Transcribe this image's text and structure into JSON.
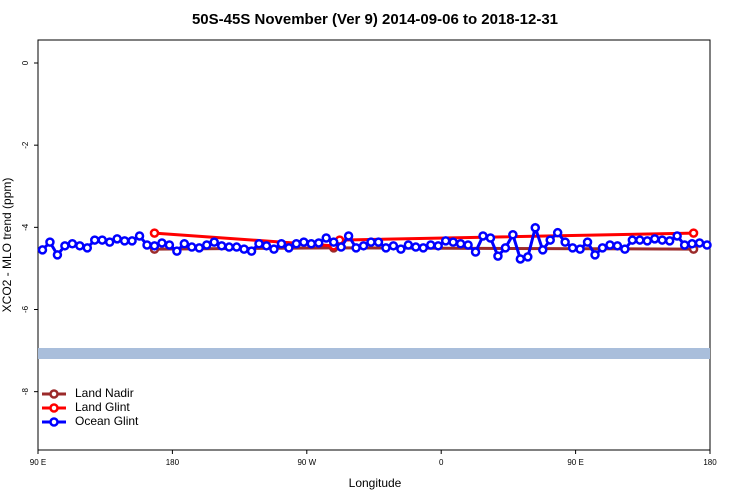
{
  "chart_data": {
    "type": "line",
    "title": "50S-45S November (Ver 9)   2014-09-06 to 2018-12-31",
    "xlabel": "Longitude",
    "ylabel": "XCO2 - MLO trend (ppm)",
    "xlim": [
      90,
      540
    ],
    "ylim": [
      -9.42,
      0.56
    ],
    "xticks": [
      {
        "value": 90,
        "label": "90 E"
      },
      180,
      {
        "value": 270,
        "label": "90 W"
      },
      {
        "value": 360,
        "label": "0"
      },
      {
        "value": 450,
        "label": "90 E"
      },
      {
        "value": 540,
        "label": "180"
      }
    ],
    "yticks": [
      0,
      -2,
      -4,
      -6,
      -8
    ],
    "legend": "bottomleft",
    "series": [
      {
        "name": "Land Nadir",
        "color": "#9b2a2a",
        "x": [
          168,
          288,
          529
        ],
        "values": [
          -4.53,
          -4.5,
          -4.53
        ]
      },
      {
        "name": "Land Glint",
        "color": "#ff0000",
        "x": [
          168,
          288,
          292,
          529
        ],
        "values": [
          -4.14,
          -4.45,
          -4.31,
          -4.14
        ]
      },
      {
        "name": "Ocean Glint",
        "color": "#0000ff",
        "x": [
          93,
          98,
          103,
          108,
          113,
          118,
          123,
          128,
          133,
          138,
          143,
          148,
          153,
          158,
          163,
          168,
          173,
          178,
          183,
          188,
          193,
          198,
          203,
          208,
          213,
          218,
          223,
          228,
          233,
          238,
          243,
          248,
          253,
          258,
          263,
          268,
          273,
          278,
          283,
          288,
          293,
          298,
          303,
          308,
          313,
          318,
          323,
          328,
          333,
          338,
          343,
          348,
          353,
          358,
          363,
          368,
          373,
          378,
          383,
          388,
          393,
          398,
          403,
          408,
          413,
          418,
          423,
          428,
          433,
          438,
          443,
          448,
          453,
          458,
          463,
          468,
          473,
          478,
          483,
          488,
          493,
          498,
          503,
          508,
          513,
          518,
          523,
          528,
          533,
          538
        ],
        "values": [
          -4.55,
          -4.36,
          -4.67,
          -4.45,
          -4.4,
          -4.45,
          -4.5,
          -4.31,
          -4.31,
          -4.36,
          -4.28,
          -4.33,
          -4.33,
          -4.21,
          -4.43,
          -4.45,
          -4.38,
          -4.43,
          -4.58,
          -4.4,
          -4.48,
          -4.5,
          -4.43,
          -4.36,
          -4.45,
          -4.48,
          -4.48,
          -4.53,
          -4.58,
          -4.4,
          -4.45,
          -4.53,
          -4.4,
          -4.5,
          -4.4,
          -4.36,
          -4.4,
          -4.38,
          -4.26,
          -4.36,
          -4.48,
          -4.21,
          -4.5,
          -4.45,
          -4.36,
          -4.36,
          -4.5,
          -4.45,
          -4.53,
          -4.43,
          -4.48,
          -4.5,
          -4.43,
          -4.45,
          -4.33,
          -4.36,
          -4.4,
          -4.43,
          -4.6,
          -4.21,
          -4.26,
          -4.7,
          -4.5,
          -4.18,
          -4.77,
          -4.72,
          -4.01,
          -4.55,
          -4.31,
          -4.13,
          -4.36,
          -4.5,
          -4.53,
          -4.36,
          -4.67,
          -4.5,
          -4.43,
          -4.45,
          -4.53,
          -4.31,
          -4.31,
          -4.33,
          -4.28,
          -4.31,
          -4.33,
          -4.21,
          -4.43,
          -4.4,
          -4.38,
          -4.43
        ]
      }
    ]
  }
}
